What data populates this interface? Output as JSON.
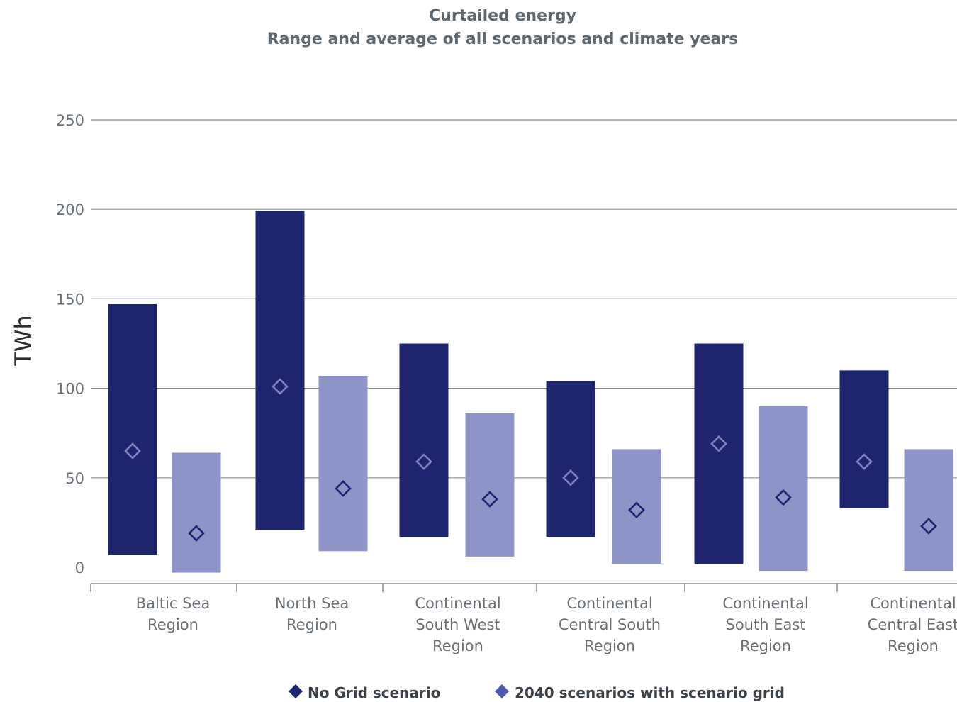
{
  "chart_data": {
    "type": "bar",
    "title": "Curtailed energy",
    "subtitle": "Range and average of all scenarios and climate years",
    "ylabel": "TWh",
    "ylim": [
      0,
      250
    ],
    "yticks": [
      0,
      50,
      100,
      150,
      200,
      250
    ],
    "grid": true,
    "legend_placement": "bottom",
    "categories": [
      [
        "Baltic Sea",
        "Region"
      ],
      [
        "North Sea",
        "Region"
      ],
      [
        "Continental",
        "South West",
        "Region"
      ],
      [
        "Continental",
        "Central South",
        "Region"
      ],
      [
        "Continental",
        "South East",
        "Region"
      ],
      [
        "Continental",
        "Central East",
        "Region"
      ]
    ],
    "series": [
      {
        "name": "No Grid scenario",
        "color": "#1e246d",
        "marker": "diamond",
        "min": [
          7,
          21,
          17,
          17,
          2,
          33
        ],
        "max": [
          147,
          199,
          125,
          104,
          125,
          110
        ],
        "avg": [
          65,
          101,
          59,
          50,
          69,
          59
        ]
      },
      {
        "name": "2040 scenarios with scenario grid",
        "color": "#8e94c8",
        "marker": "diamond",
        "min": [
          -3,
          9,
          6,
          2,
          -2,
          -2
        ],
        "max": [
          64,
          107,
          86,
          66,
          90,
          66
        ],
        "avg": [
          19,
          44,
          38,
          32,
          39,
          23
        ]
      }
    ]
  }
}
